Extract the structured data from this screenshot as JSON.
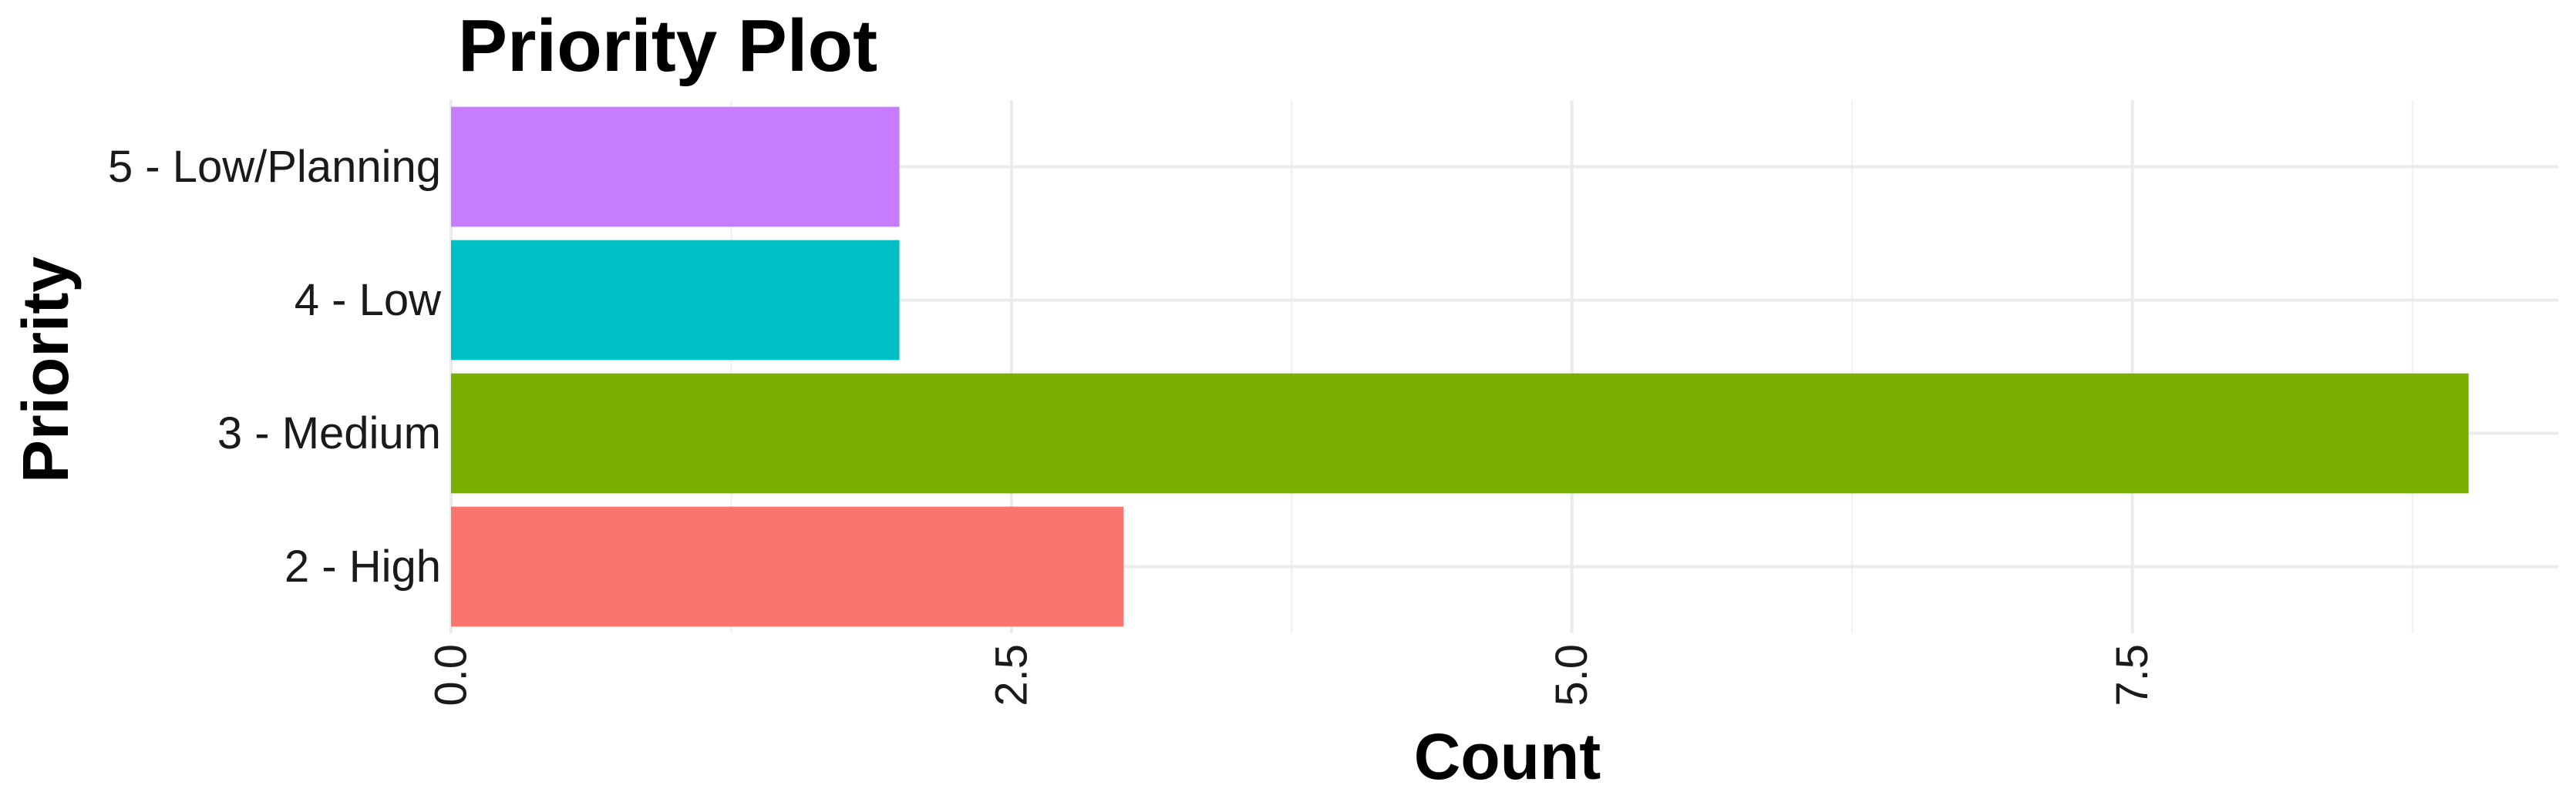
{
  "chart_data": {
    "type": "bar",
    "orientation": "horizontal",
    "title": "Priority Plot",
    "xlabel": "Count",
    "ylabel": "Priority",
    "categories": [
      "2 - High",
      "3 - Medium",
      "4 - Low",
      "5 - Low/Planning"
    ],
    "values": [
      3,
      9,
      2,
      2
    ],
    "colors": [
      "#F8766D",
      "#7CAE00",
      "#00BFC4",
      "#C77CFF"
    ],
    "xlim": [
      0,
      9.4
    ],
    "x_ticks": [
      0,
      2.5,
      5,
      7.5
    ],
    "x_tick_labels": [
      "0.0",
      "2.5",
      "5.0",
      "7.5"
    ],
    "x_tick_label_rotation": "vertical",
    "grid": true,
    "legend": "none"
  }
}
